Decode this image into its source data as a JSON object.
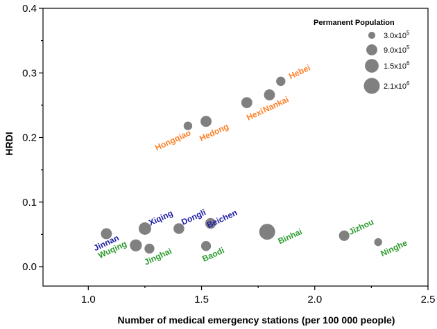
{
  "chart_data": {
    "type": "scatter",
    "xlabel": "Number of medical emergency stations (per 100 000 people)",
    "ylabel": "HRDI",
    "xlim": [
      0.8,
      2.5
    ],
    "ylim": [
      -0.03,
      0.4
    ],
    "x_ticks": [
      1.0,
      1.5,
      2.0,
      2.5
    ],
    "x_tick_labels": [
      "1.0",
      "1.5",
      "2.0",
      "2.5"
    ],
    "y_ticks": [
      0.0,
      0.1,
      0.2,
      0.3,
      0.4
    ],
    "y_tick_labels": [
      "0.0",
      "0.1",
      "0.2",
      "0.3",
      "0.4"
    ],
    "marker_color": "#808080",
    "group_colors": {
      "orange": "#ff7f27",
      "blue": "#1a1aa6",
      "green": "#2a9a2a"
    },
    "points": [
      {
        "name": "Hebei",
        "x": 1.85,
        "y": 0.287,
        "population": 600000,
        "group": "orange"
      },
      {
        "name": "Nankai",
        "x": 1.8,
        "y": 0.266,
        "population": 900000,
        "group": "orange"
      },
      {
        "name": "Hexi",
        "x": 1.7,
        "y": 0.254,
        "population": 900000,
        "group": "orange"
      },
      {
        "name": "Hedong",
        "x": 1.52,
        "y": 0.225,
        "population": 900000,
        "group": "orange"
      },
      {
        "name": "Hongqiao",
        "x": 1.44,
        "y": 0.218,
        "population": 500000,
        "group": "orange"
      },
      {
        "name": "Jinnan",
        "x": 1.08,
        "y": 0.051,
        "population": 900000,
        "group": "blue"
      },
      {
        "name": "Xiqing",
        "x": 1.25,
        "y": 0.059,
        "population": 1200000,
        "group": "blue"
      },
      {
        "name": "Dongli",
        "x": 1.4,
        "y": 0.059,
        "population": 850000,
        "group": "blue"
      },
      {
        "name": "Beichen",
        "x": 1.54,
        "y": 0.067,
        "population": 850000,
        "group": "blue"
      },
      {
        "name": "Wuqing",
        "x": 1.21,
        "y": 0.033,
        "population": 1100000,
        "group": "green"
      },
      {
        "name": "Jinghai",
        "x": 1.27,
        "y": 0.028,
        "population": 700000,
        "group": "green"
      },
      {
        "name": "Baodi",
        "x": 1.52,
        "y": 0.032,
        "population": 700000,
        "group": "green"
      },
      {
        "name": "Binhai",
        "x": 1.79,
        "y": 0.054,
        "population": 2100000,
        "group": "green"
      },
      {
        "name": "Jizhou",
        "x": 2.13,
        "y": 0.048,
        "population": 800000,
        "group": "green"
      },
      {
        "name": "Ninghe",
        "x": 2.28,
        "y": 0.038,
        "population": 400000,
        "group": "green"
      }
    ],
    "legend": {
      "title": "Permanent Population",
      "position": "top-right",
      "entries": [
        {
          "base": "3.0x10",
          "exp": "5",
          "population": 300000
        },
        {
          "base": "9.0x10",
          "exp": "5",
          "population": 900000
        },
        {
          "base": "1.5x10",
          "exp": "6",
          "population": 1500000
        },
        {
          "base": "2.1x10",
          "exp": "6",
          "population": 2100000
        }
      ]
    }
  }
}
